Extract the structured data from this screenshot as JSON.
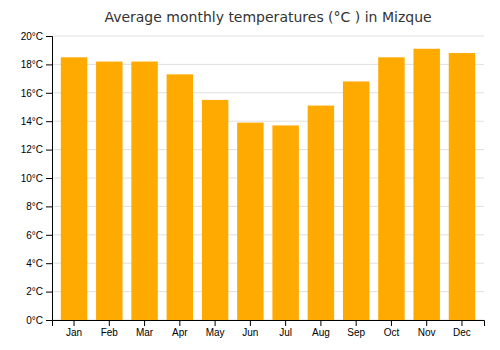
{
  "chart_data": {
    "type": "bar",
    "title": "Average monthly temperatures (°C ) in Mizque",
    "categories": [
      "Jan",
      "Feb",
      "Mar",
      "Apr",
      "May",
      "Jun",
      "Jul",
      "Aug",
      "Sep",
      "Oct",
      "Nov",
      "Dec"
    ],
    "values": [
      18.5,
      18.2,
      18.2,
      17.3,
      15.5,
      13.9,
      13.7,
      15.1,
      16.8,
      18.5,
      19.1,
      18.8
    ],
    "color": "#FFAA00",
    "ylim": [
      0,
      20
    ],
    "yticks": [
      {
        "value": 0,
        "label": "0°C"
      },
      {
        "value": 2,
        "label": "2°C"
      },
      {
        "value": 4,
        "label": "4°C"
      },
      {
        "value": 6,
        "label": "6°C"
      },
      {
        "value": 8,
        "label": "8°C"
      },
      {
        "value": 10,
        "label": "10°C"
      },
      {
        "value": 12,
        "label": "12°C"
      },
      {
        "value": 14,
        "label": "14°C"
      },
      {
        "value": 16,
        "label": "16°C"
      },
      {
        "value": 18,
        "label": "18°C"
      },
      {
        "value": 20,
        "label": "20°C"
      }
    ],
    "grid": true
  }
}
